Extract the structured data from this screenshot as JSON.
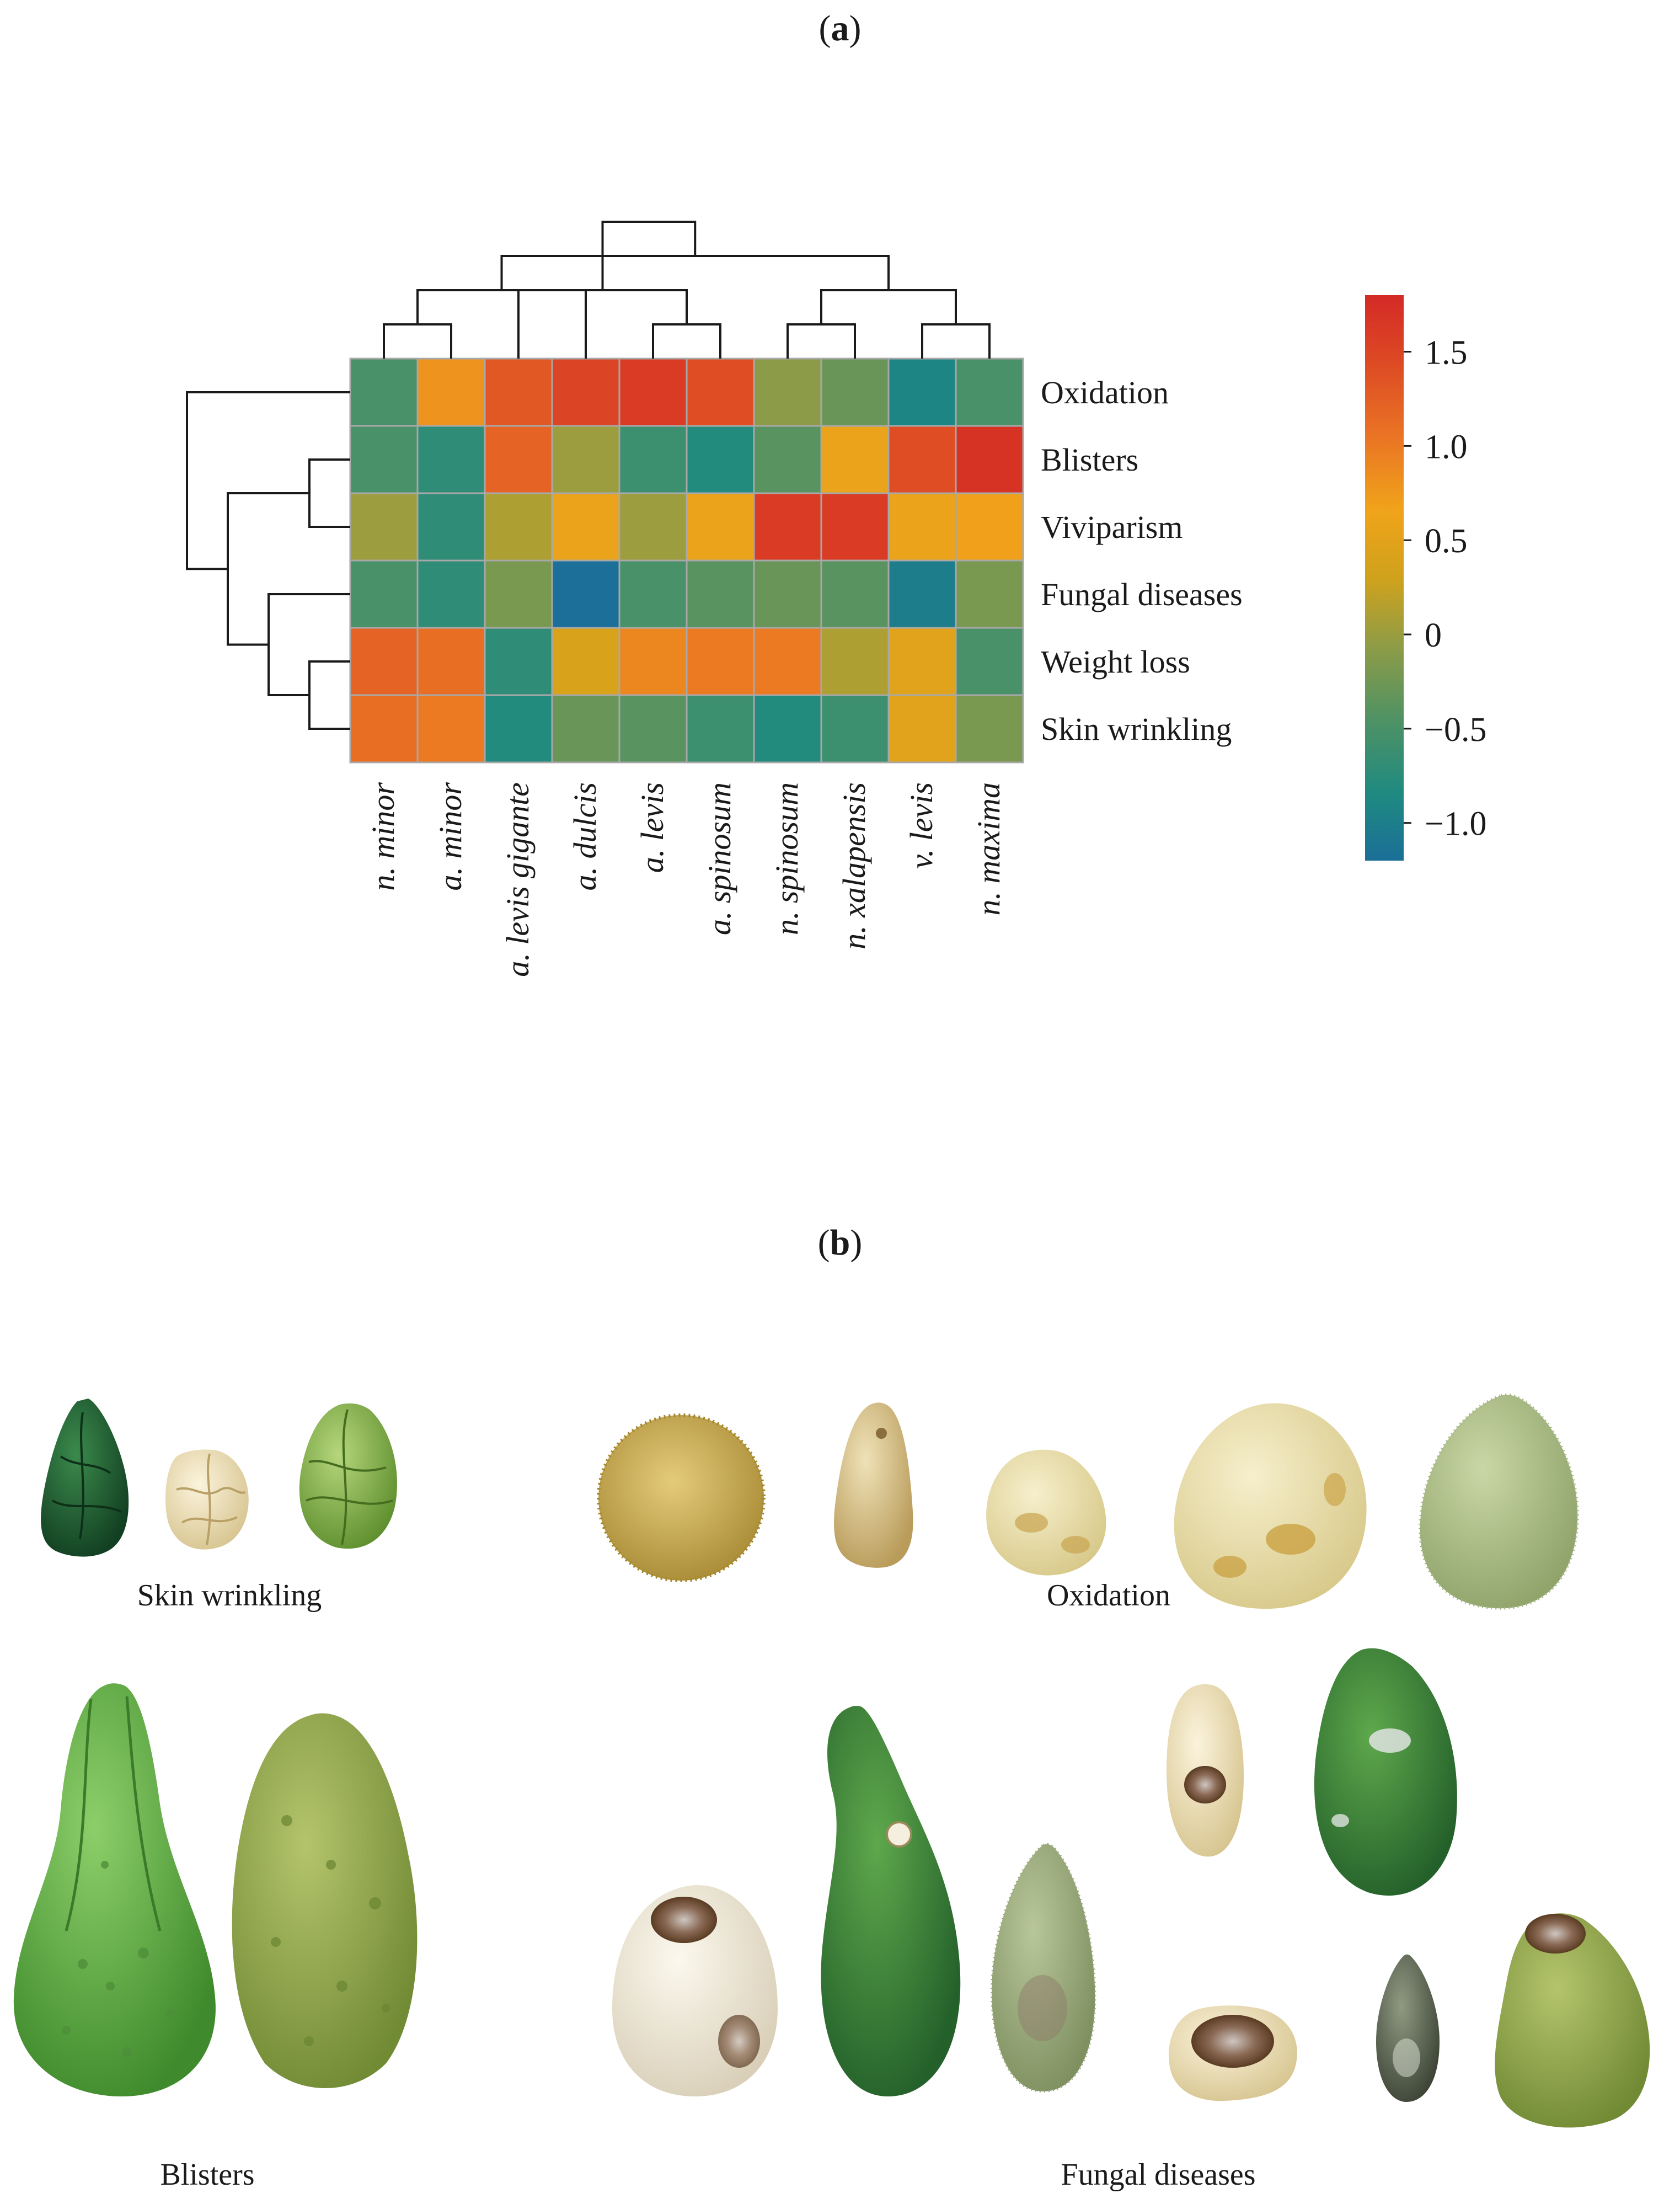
{
  "panels": {
    "a": {
      "open": "(",
      "letter": "a",
      "close": ")"
    },
    "b": {
      "open": "(",
      "letter": "b",
      "close": ")"
    }
  },
  "chart_data": {
    "type": "heatmap",
    "title": "",
    "columns": [
      "n. minor",
      "a. minor",
      "a. levis gigante",
      "a. dulcis",
      "a. levis",
      "a. spinosum",
      "n. spinosum",
      "n. xalapensis",
      "v. levis",
      "n. maxima"
    ],
    "rows": [
      "Oxidation",
      "Blisters",
      "Viviparism",
      "Fungal diseases",
      "Weight loss",
      "Skin wrinkling"
    ],
    "values": [
      [
        -0.5,
        0.8,
        1.3,
        1.5,
        1.6,
        1.4,
        -0.1,
        -0.3,
        -0.9,
        -0.5
      ],
      [
        -0.5,
        -0.7,
        1.2,
        0.0,
        -0.6,
        -0.8,
        -0.4,
        0.6,
        1.4,
        1.7
      ],
      [
        0.0,
        -0.7,
        0.1,
        0.6,
        0.0,
        0.6,
        1.6,
        1.6,
        0.6,
        0.7
      ],
      [
        -0.5,
        -0.7,
        -0.2,
        -1.2,
        -0.5,
        -0.4,
        -0.3,
        -0.4,
        -1.0,
        -0.2
      ],
      [
        1.2,
        1.1,
        -0.7,
        0.4,
        0.9,
        1.0,
        1.0,
        0.1,
        0.5,
        -0.5
      ],
      [
        1.1,
        1.0,
        -0.8,
        -0.3,
        -0.4,
        -0.6,
        -0.8,
        -0.6,
        0.5,
        -0.2
      ]
    ],
    "colorbar": {
      "min": -1.2,
      "max": 1.8,
      "ticks": [
        1.5,
        1.0,
        0.5,
        0,
        -0.5,
        -1.0
      ],
      "tick_labels": [
        "1.5",
        "1.0",
        "0.5",
        "0",
        "−0.5",
        "−1.0"
      ]
    },
    "column_dendrogram": [
      [
        0,
        1
      ],
      [
        4,
        5
      ],
      [
        3,
        10
      ],
      [
        2,
        11
      ],
      [
        6,
        7
      ],
      [
        8,
        9
      ],
      [
        14,
        15
      ],
      [
        12,
        16
      ],
      [
        13,
        17
      ]
    ],
    "row_dendrogram": [
      [
        4,
        5
      ],
      [
        3,
        6
      ],
      [
        1,
        2
      ],
      [
        8,
        7
      ],
      [
        0,
        9
      ]
    ],
    "colors": [
      "#1b6f98",
      "#1f8a80",
      "#4f9264",
      "#8f9c46",
      "#d0a21c",
      "#f0a31a",
      "#ea7424",
      "#dd4a24",
      "#d42a26"
    ]
  },
  "photos": {
    "captions": {
      "skin_wrinkling": "Skin wrinkling",
      "oxidation": "Oxidation",
      "blisters": "Blisters",
      "fungal_diseases": "Fungal diseases"
    }
  }
}
